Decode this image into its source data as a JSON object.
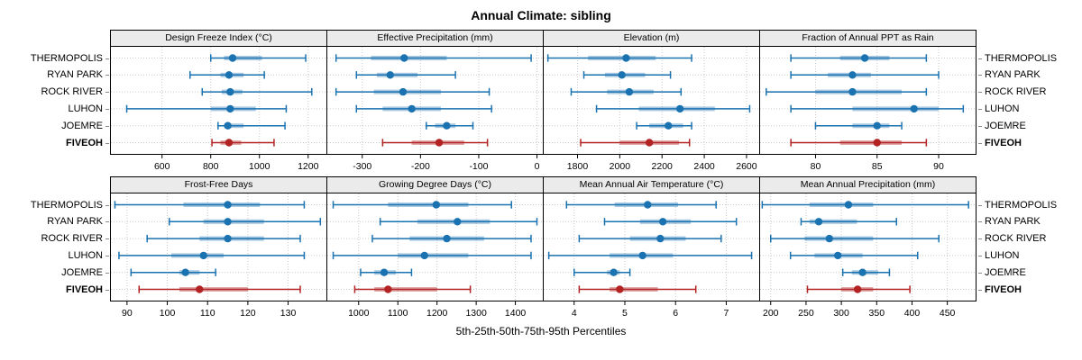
{
  "title": "Annual Climate: sibling",
  "footer": "5th-25th-50th-75th-95th Percentiles",
  "highlight_site": "FIVEOH",
  "colors": {
    "blue": "#1a72b0",
    "blue_band": "rgba(26,114,176,0.38)",
    "red": "#b22222",
    "red_band": "rgba(178,34,34,0.40)",
    "header_bg": "#ebebeb",
    "grid": "#c9c9c9",
    "border": "#000000",
    "axis_text": "#000000"
  },
  "chart_data": {
    "type": "dotplot-intervals",
    "title": "Annual Climate: sibling",
    "xlabel": "5th-25th-50th-75th-95th Percentiles",
    "percentiles": [
      5,
      25,
      50,
      75,
      95
    ],
    "sites": [
      "THERMOPOLIS",
      "RYAN PARK",
      "ROCK RIVER",
      "LUHON",
      "JOEMRE",
      "FIVEOH"
    ],
    "layout": {
      "rows": 2,
      "cols": 4,
      "grid": "dotted",
      "y_labels": "both-sides"
    },
    "panels": [
      {
        "title": "Design Freeze Index (°C)",
        "xlim": [
          390,
          1275
        ],
        "ticks": [
          600,
          800,
          1000,
          1200
        ],
        "series": [
          [
            800,
            855,
            890,
            1010,
            1190
          ],
          [
            715,
            840,
            875,
            935,
            1020
          ],
          [
            765,
            845,
            880,
            930,
            1215
          ],
          [
            455,
            800,
            880,
            985,
            1110
          ],
          [
            830,
            855,
            870,
            935,
            1105
          ],
          [
            805,
            840,
            875,
            925,
            1060
          ]
        ]
      },
      {
        "title": "Effective Precipitation (mm)",
        "xlim": [
          -360,
          10
        ],
        "ticks": [
          -300,
          -200,
          -100,
          0
        ],
        "series": [
          [
            -345,
            -285,
            -228,
            -155,
            -10
          ],
          [
            -310,
            -275,
            -252,
            -205,
            -140
          ],
          [
            -345,
            -280,
            -230,
            -165,
            -82
          ],
          [
            -310,
            -265,
            -215,
            -165,
            -78
          ],
          [
            -190,
            -175,
            -155,
            -140,
            -110
          ],
          [
            -265,
            -215,
            -168,
            -125,
            -85
          ]
        ]
      },
      {
        "title": "Elevation (m)",
        "xlim": [
          1640,
          2660
        ],
        "ticks": [
          1800,
          2000,
          2200,
          2400,
          2600
        ],
        "series": [
          [
            1660,
            1850,
            2030,
            2170,
            2340
          ],
          [
            1830,
            1930,
            2010,
            2120,
            2240
          ],
          [
            1770,
            1940,
            2045,
            2160,
            2290
          ],
          [
            1890,
            2090,
            2285,
            2450,
            2615
          ],
          [
            2080,
            2140,
            2230,
            2300,
            2340
          ],
          [
            1815,
            2000,
            2140,
            2280,
            2330
          ]
        ]
      },
      {
        "title": "Fraction of Annual PPT as Rain",
        "xlim": [
          75.5,
          93
        ],
        "ticks": [
          80,
          85,
          90
        ],
        "series": [
          [
            78,
            82,
            84,
            86,
            89
          ],
          [
            78,
            81,
            83,
            84.5,
            90
          ],
          [
            76,
            80,
            83,
            87,
            89
          ],
          [
            78,
            83,
            88,
            90,
            92
          ],
          [
            80,
            83,
            85,
            86,
            87
          ],
          [
            78,
            82,
            85,
            87,
            89
          ]
        ]
      },
      {
        "title": "Frost-Free Days",
        "xlim": [
          86,
          139.5
        ],
        "ticks": [
          90,
          100,
          110,
          120,
          130
        ],
        "series": [
          [
            87,
            104,
            115,
            123,
            134
          ],
          [
            100.5,
            109,
            115,
            124,
            138
          ],
          [
            95,
            108,
            115,
            124,
            133
          ],
          [
            88,
            101,
            109,
            114,
            134
          ],
          [
            91,
            103,
            104.5,
            108,
            112
          ],
          [
            93,
            103,
            108,
            120,
            133
          ]
        ]
      },
      {
        "title": "Growing Degree Days (°C)",
        "xlim": [
          920,
          1470
        ],
        "ticks": [
          1000,
          1100,
          1200,
          1300,
          1400
        ],
        "series": [
          [
            935,
            1075,
            1198,
            1280,
            1390
          ],
          [
            1055,
            1150,
            1252,
            1335,
            1455
          ],
          [
            1035,
            1130,
            1225,
            1320,
            1440
          ],
          [
            935,
            1100,
            1168,
            1280,
            1440
          ],
          [
            1005,
            1040,
            1065,
            1095,
            1135
          ],
          [
            990,
            1040,
            1075,
            1200,
            1285
          ]
        ]
      },
      {
        "title": "Mean Annual Air Temperature (°C)",
        "xlim": [
          3.4,
          7.65
        ],
        "ticks": [
          4,
          5,
          6,
          7
        ],
        "series": [
          [
            3.85,
            4.8,
            5.45,
            6.05,
            6.8
          ],
          [
            4.6,
            5.3,
            5.75,
            6.3,
            7.2
          ],
          [
            4.1,
            5.1,
            5.7,
            6.2,
            6.9
          ],
          [
            3.5,
            4.7,
            5.35,
            5.95,
            7.5
          ],
          [
            4.0,
            4.65,
            4.78,
            4.9,
            5.1
          ],
          [
            4.1,
            4.7,
            4.9,
            5.65,
            6.4
          ]
        ]
      },
      {
        "title": "Mean Annual Precipitation (mm)",
        "xlim": [
          185,
          490
        ],
        "ticks": [
          200,
          250,
          300,
          350,
          400,
          450
        ],
        "series": [
          [
            188,
            255,
            310,
            345,
            480
          ],
          [
            243,
            255,
            268,
            322,
            378
          ],
          [
            200,
            248,
            283,
            345,
            438
          ],
          [
            228,
            262,
            295,
            330,
            408
          ],
          [
            302,
            315,
            330,
            352,
            368
          ],
          [
            252,
            300,
            323,
            345,
            397
          ]
        ]
      }
    ]
  }
}
